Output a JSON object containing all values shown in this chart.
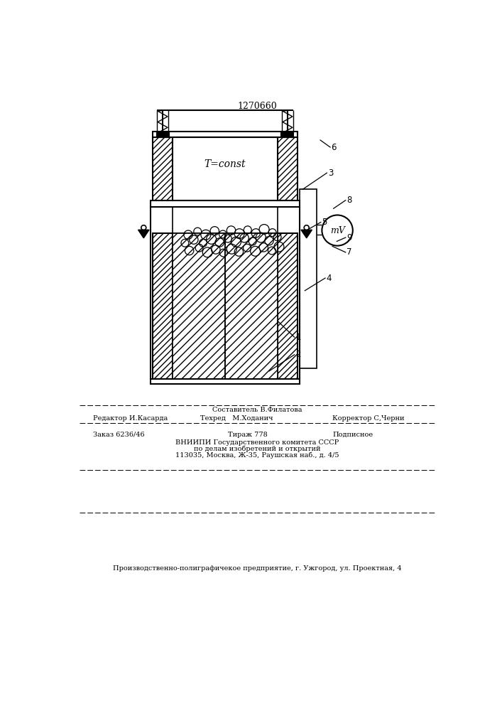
{
  "patent_number": "1270660",
  "bg_color": "#ffffff",
  "line_color": "#000000",
  "circles": [
    [
      230,
      698,
      8
    ],
    [
      248,
      703,
      7
    ],
    [
      263,
      695,
      9
    ],
    [
      278,
      700,
      8
    ],
    [
      292,
      694,
      7
    ],
    [
      307,
      701,
      9
    ],
    [
      320,
      696,
      8
    ],
    [
      335,
      703,
      7
    ],
    [
      350,
      697,
      9
    ],
    [
      365,
      704,
      8
    ],
    [
      380,
      698,
      7
    ],
    [
      393,
      705,
      9
    ],
    [
      222,
      712,
      7
    ],
    [
      238,
      718,
      8
    ],
    [
      255,
      712,
      7
    ],
    [
      270,
      719,
      9
    ],
    [
      285,
      713,
      8
    ],
    [
      300,
      720,
      7
    ],
    [
      315,
      714,
      9
    ],
    [
      330,
      721,
      8
    ],
    [
      345,
      715,
      7
    ],
    [
      360,
      722,
      9
    ],
    [
      375,
      716,
      8
    ],
    [
      390,
      723,
      7
    ],
    [
      228,
      727,
      8
    ],
    [
      245,
      733,
      7
    ],
    [
      260,
      727,
      9
    ],
    [
      276,
      734,
      8
    ],
    [
      291,
      728,
      7
    ],
    [
      306,
      735,
      8
    ],
    [
      321,
      729,
      9
    ],
    [
      336,
      736,
      7
    ],
    [
      351,
      730,
      8
    ],
    [
      366,
      737,
      9
    ],
    [
      381,
      731,
      7
    ]
  ],
  "labels": [
    [
      "6",
      487,
      887,
      468,
      900
    ],
    [
      "3",
      481,
      840,
      436,
      810
    ],
    [
      "8",
      515,
      790,
      492,
      775
    ],
    [
      "5",
      470,
      750,
      448,
      738
    ],
    [
      "9",
      515,
      722,
      498,
      715
    ],
    [
      "7",
      515,
      695,
      490,
      706
    ],
    [
      "4",
      478,
      648,
      440,
      625
    ],
    [
      "1",
      422,
      540,
      390,
      570
    ],
    [
      "2",
      422,
      508,
      375,
      478
    ]
  ],
  "footer": {
    "sostavitel": "Составитель В.Филатова",
    "redaktor": "Редактор И.Касарда",
    "tekhred": "Техред   М.Ходанич",
    "korrektor": "Корректор С,Черни",
    "zakaz": "Заказ 6236/46",
    "tirazh": "Тираж 778",
    "podpisnoe": "Подписное",
    "vniipи1": "ВНИИПИ Государственного комитета СССР",
    "vniipи2": "по делам изобретений и открытий",
    "vniipи3": "113035, Москва, Ж-35, Раушская наб., д. 4/5",
    "producer": "Производственно-полиграфичекое предприятие, г. Ужгород, ул. Проектная, 4"
  }
}
